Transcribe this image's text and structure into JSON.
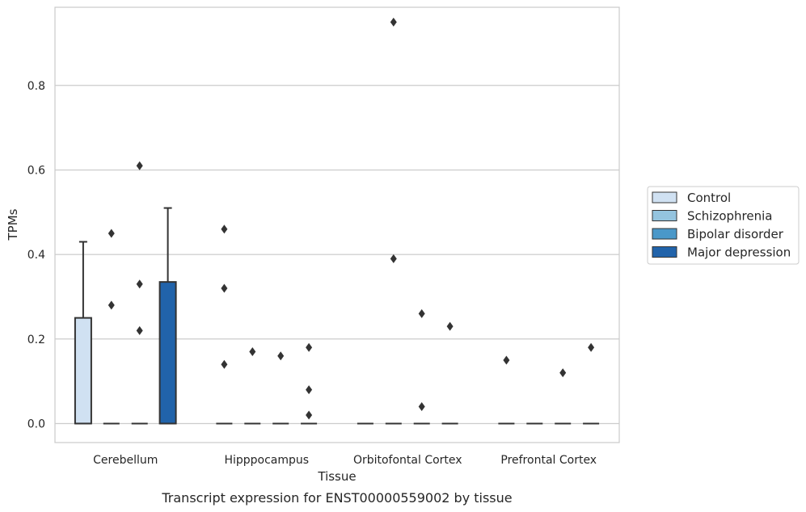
{
  "chart_data": {
    "type": "box",
    "caption": "Transcript expression for ENST00000559002 by tissue",
    "xlabel": "Tissue",
    "ylabel": "TPMs",
    "ylim": [
      -0.045,
      0.985
    ],
    "yticks": [
      0.0,
      0.2,
      0.4,
      0.6,
      0.8
    ],
    "ytick_labels": [
      "0.0",
      "0.2",
      "0.4",
      "0.6",
      "0.8"
    ],
    "grid": true,
    "categories": [
      "Cerebellum",
      "Hipppocampus",
      "Orbitofontal Cortex",
      "Prefrontal Cortex"
    ],
    "legend": {
      "placement": "right",
      "entries": [
        "Control",
        "Schizophrenia",
        "Bipolar disorder",
        "Major depression"
      ]
    },
    "series": [
      {
        "name": "Control",
        "color": "#d0e1f2",
        "boxes": [
          {
            "q1": 0.0,
            "median": 0.0,
            "q3": 0.25,
            "whisker_low": 0.0,
            "whisker_high": 0.43,
            "outliers": []
          },
          {
            "q1": 0.0,
            "median": 0.0,
            "q3": 0.0,
            "whisker_low": 0.0,
            "whisker_high": 0.0,
            "outliers": [
              0.46,
              0.32,
              0.14
            ]
          },
          {
            "q1": 0.0,
            "median": 0.0,
            "q3": 0.0,
            "whisker_low": 0.0,
            "whisker_high": 0.0,
            "outliers": []
          },
          {
            "q1": 0.0,
            "median": 0.0,
            "q3": 0.0,
            "whisker_low": 0.0,
            "whisker_high": 0.0,
            "outliers": [
              0.15
            ]
          }
        ]
      },
      {
        "name": "Schizophrenia",
        "color": "#94c4df",
        "boxes": [
          {
            "q1": 0.0,
            "median": 0.0,
            "q3": 0.0,
            "whisker_low": 0.0,
            "whisker_high": 0.0,
            "outliers": [
              0.45,
              0.28
            ]
          },
          {
            "q1": 0.0,
            "median": 0.0,
            "q3": 0.0,
            "whisker_low": 0.0,
            "whisker_high": 0.0,
            "outliers": [
              0.17
            ]
          },
          {
            "q1": 0.0,
            "median": 0.0,
            "q3": 0.0,
            "whisker_low": 0.0,
            "whisker_high": 0.0,
            "outliers": [
              0.95,
              0.39
            ]
          },
          {
            "q1": 0.0,
            "median": 0.0,
            "q3": 0.0,
            "whisker_low": 0.0,
            "whisker_high": 0.0,
            "outliers": []
          }
        ]
      },
      {
        "name": "Bipolar disorder",
        "color": "#4a98c9",
        "boxes": [
          {
            "q1": 0.0,
            "median": 0.0,
            "q3": 0.0,
            "whisker_low": 0.0,
            "whisker_high": 0.0,
            "outliers": [
              0.61,
              0.33,
              0.22
            ]
          },
          {
            "q1": 0.0,
            "median": 0.0,
            "q3": 0.0,
            "whisker_low": 0.0,
            "whisker_high": 0.0,
            "outliers": [
              0.16
            ]
          },
          {
            "q1": 0.0,
            "median": 0.0,
            "q3": 0.0,
            "whisker_low": 0.0,
            "whisker_high": 0.0,
            "outliers": [
              0.26,
              0.04
            ]
          },
          {
            "q1": 0.0,
            "median": 0.0,
            "q3": 0.0,
            "whisker_low": 0.0,
            "whisker_high": 0.0,
            "outliers": [
              0.12
            ]
          }
        ]
      },
      {
        "name": "Major depression",
        "color": "#2163aa",
        "boxes": [
          {
            "q1": 0.0,
            "median": 0.0,
            "q3": 0.335,
            "whisker_low": 0.0,
            "whisker_high": 0.51,
            "outliers": []
          },
          {
            "q1": 0.0,
            "median": 0.0,
            "q3": 0.0,
            "whisker_low": 0.0,
            "whisker_high": 0.0,
            "outliers": [
              0.18,
              0.08,
              0.02
            ]
          },
          {
            "q1": 0.0,
            "median": 0.0,
            "q3": 0.0,
            "whisker_low": 0.0,
            "whisker_high": 0.0,
            "outliers": [
              0.23
            ]
          },
          {
            "q1": 0.0,
            "median": 0.0,
            "q3": 0.0,
            "whisker_low": 0.0,
            "whisker_high": 0.0,
            "outliers": [
              0.18
            ]
          }
        ]
      }
    ]
  }
}
